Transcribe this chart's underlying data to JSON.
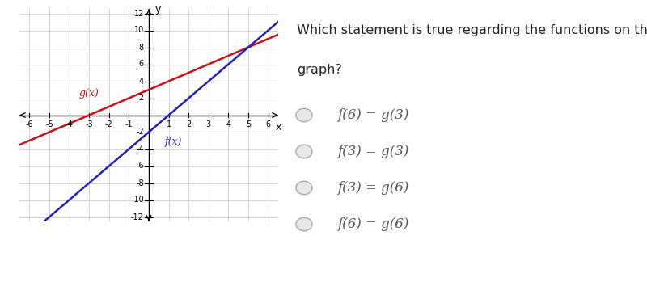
{
  "f_slope": 2,
  "f_intercept": -2,
  "g_slope": 1,
  "g_intercept": 3,
  "f_color": "#2222bb",
  "g_color": "#cc1111",
  "f_label": "f(x)",
  "g_label": "g(x)",
  "x_min": -6,
  "x_max": 6,
  "y_min": -12,
  "y_max": 12,
  "x_ticks": [
    -6,
    -5,
    -4,
    -3,
    -2,
    -1,
    1,
    2,
    3,
    4,
    5,
    6
  ],
  "y_ticks": [
    -12,
    -10,
    -8,
    -6,
    -4,
    -2,
    2,
    4,
    6,
    8,
    10,
    12
  ],
  "graph_bg": "#ffffff",
  "grid_color": "#cccccc",
  "question_line1": "Which statement is true regarding the functions on the",
  "question_line2": "graph?",
  "options": [
    "f(6) = g(3)",
    "f(3) = g(3)",
    "f(3) = g(6)",
    "f(6) = g(6)"
  ],
  "question_fontsize": 11.5,
  "option_fontsize": 12
}
